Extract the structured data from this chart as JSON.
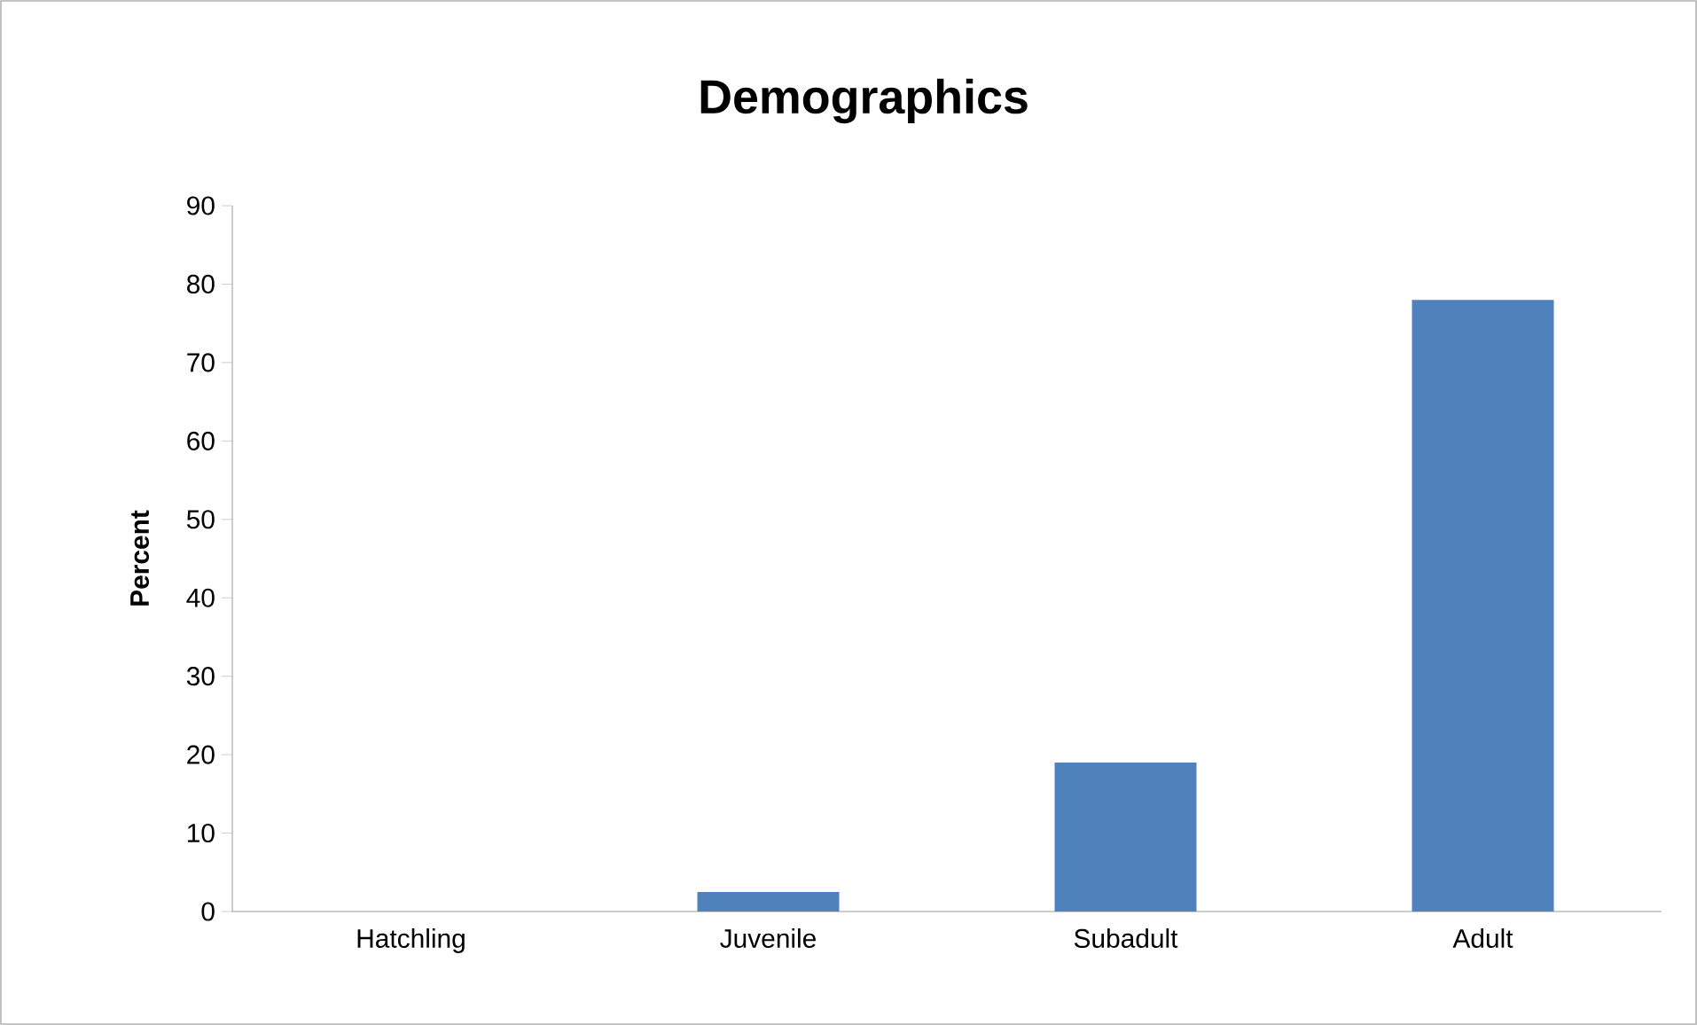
{
  "chart_data": {
    "type": "bar",
    "title": "Demographics",
    "ylabel": "Percent",
    "categories": [
      "Hatchling",
      "Juvenile",
      "Subadult",
      "Adult"
    ],
    "values": [
      0,
      2.5,
      19,
      78
    ],
    "color": "#4f81bd",
    "ylim": [
      0,
      90
    ],
    "yticks": [
      0,
      10,
      20,
      30,
      40,
      50,
      60,
      70,
      80,
      90
    ]
  }
}
